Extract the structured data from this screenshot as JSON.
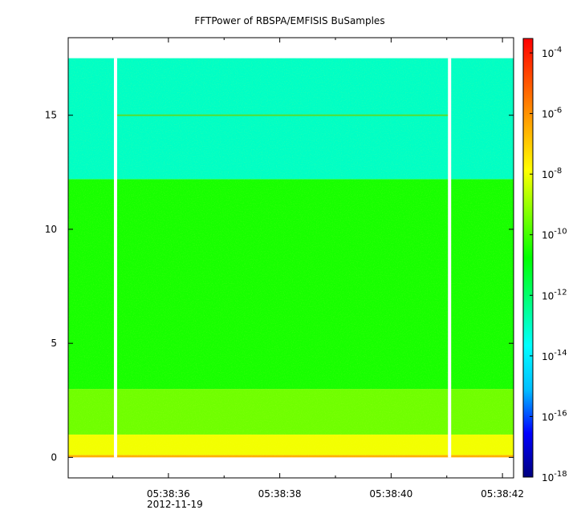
{
  "chart_data": {
    "type": "heatmap",
    "title": "FFTPower of RBSPA/EMFISIS  BuSamples",
    "x": {
      "tick_labels": [
        "05:38:36",
        "05:38:38",
        "05:38:40",
        "05:38:42"
      ],
      "tick_values_s": [
        36,
        38,
        40,
        42
      ],
      "minor_tick_values_s": [
        35,
        37,
        39,
        41
      ],
      "range_s": [
        34.2,
        42.2
      ],
      "date_label": "2012-11-19"
    },
    "y": {
      "tick_labels": [
        "0",
        "5",
        "10",
        "15"
      ],
      "tick_values": [
        0,
        5,
        10,
        15
      ],
      "range": [
        -0.9,
        18.4
      ],
      "data_top": 17.5
    },
    "colorbar": {
      "scale": "log",
      "range": [
        1e-18,
        0.0003
      ],
      "tick_exponents": [
        -4,
        -6,
        -8,
        -10,
        -12,
        -14,
        -16,
        -18
      ],
      "tick_base": "10",
      "colors": [
        "#00007f",
        "#0000ff",
        "#00bfff",
        "#00ffff",
        "#00ff7f",
        "#00ff00",
        "#7fff00",
        "#ffff00",
        "#ffaa00",
        "#ff5500",
        "#ff0000"
      ]
    },
    "data_gaps_s": [
      35.05,
      41.05
    ],
    "features": {
      "line_at_y": 15.0,
      "bands": [
        {
          "y": [
            12.2,
            17.5
          ],
          "level_exponent": -13
        },
        {
          "y": [
            3.0,
            12.2
          ],
          "level_exponent": -10.5
        },
        {
          "y": [
            1.0,
            3.0
          ],
          "level_exponent": -9.5
        },
        {
          "y": [
            0.1,
            1.0
          ],
          "level_exponent": -8
        },
        {
          "y": [
            0.0,
            0.1
          ],
          "level_exponent": -6.5
        }
      ]
    }
  }
}
